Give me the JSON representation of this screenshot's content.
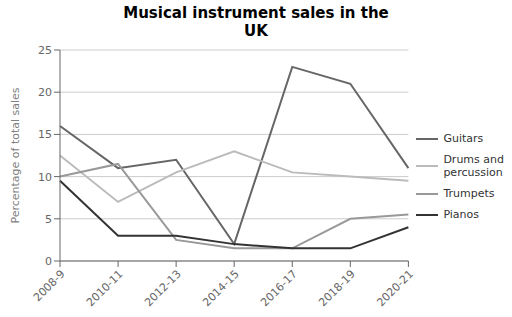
{
  "chart_data": {
    "type": "line",
    "title": "Musical instrument sales in the\nUK",
    "ylabel": "Percentage of total sales",
    "categories": [
      "2008-9",
      "2010-11",
      "2012-13",
      "2014-15",
      "2016-17",
      "2018-19",
      "2020-21"
    ],
    "series": [
      {
        "name": "Guitars",
        "color": "#666666",
        "values": [
          16,
          11,
          12,
          2,
          23,
          21,
          11
        ]
      },
      {
        "name": "Drums and\npercussion",
        "color": "#bbbbbb",
        "values": [
          12.5,
          7,
          10.5,
          13,
          10.5,
          10,
          9.5
        ]
      },
      {
        "name": "Trumpets",
        "color": "#999999",
        "values": [
          10,
          11.5,
          2.5,
          1.5,
          1.5,
          5,
          5.5
        ]
      },
      {
        "name": "Pianos",
        "color": "#333333",
        "values": [
          9.5,
          3,
          3,
          2,
          1.5,
          1.5,
          4
        ]
      }
    ],
    "ylim": [
      0,
      25
    ],
    "yticks": [
      0,
      5,
      10,
      15,
      20,
      25
    ],
    "grid": true,
    "legend": "right"
  }
}
